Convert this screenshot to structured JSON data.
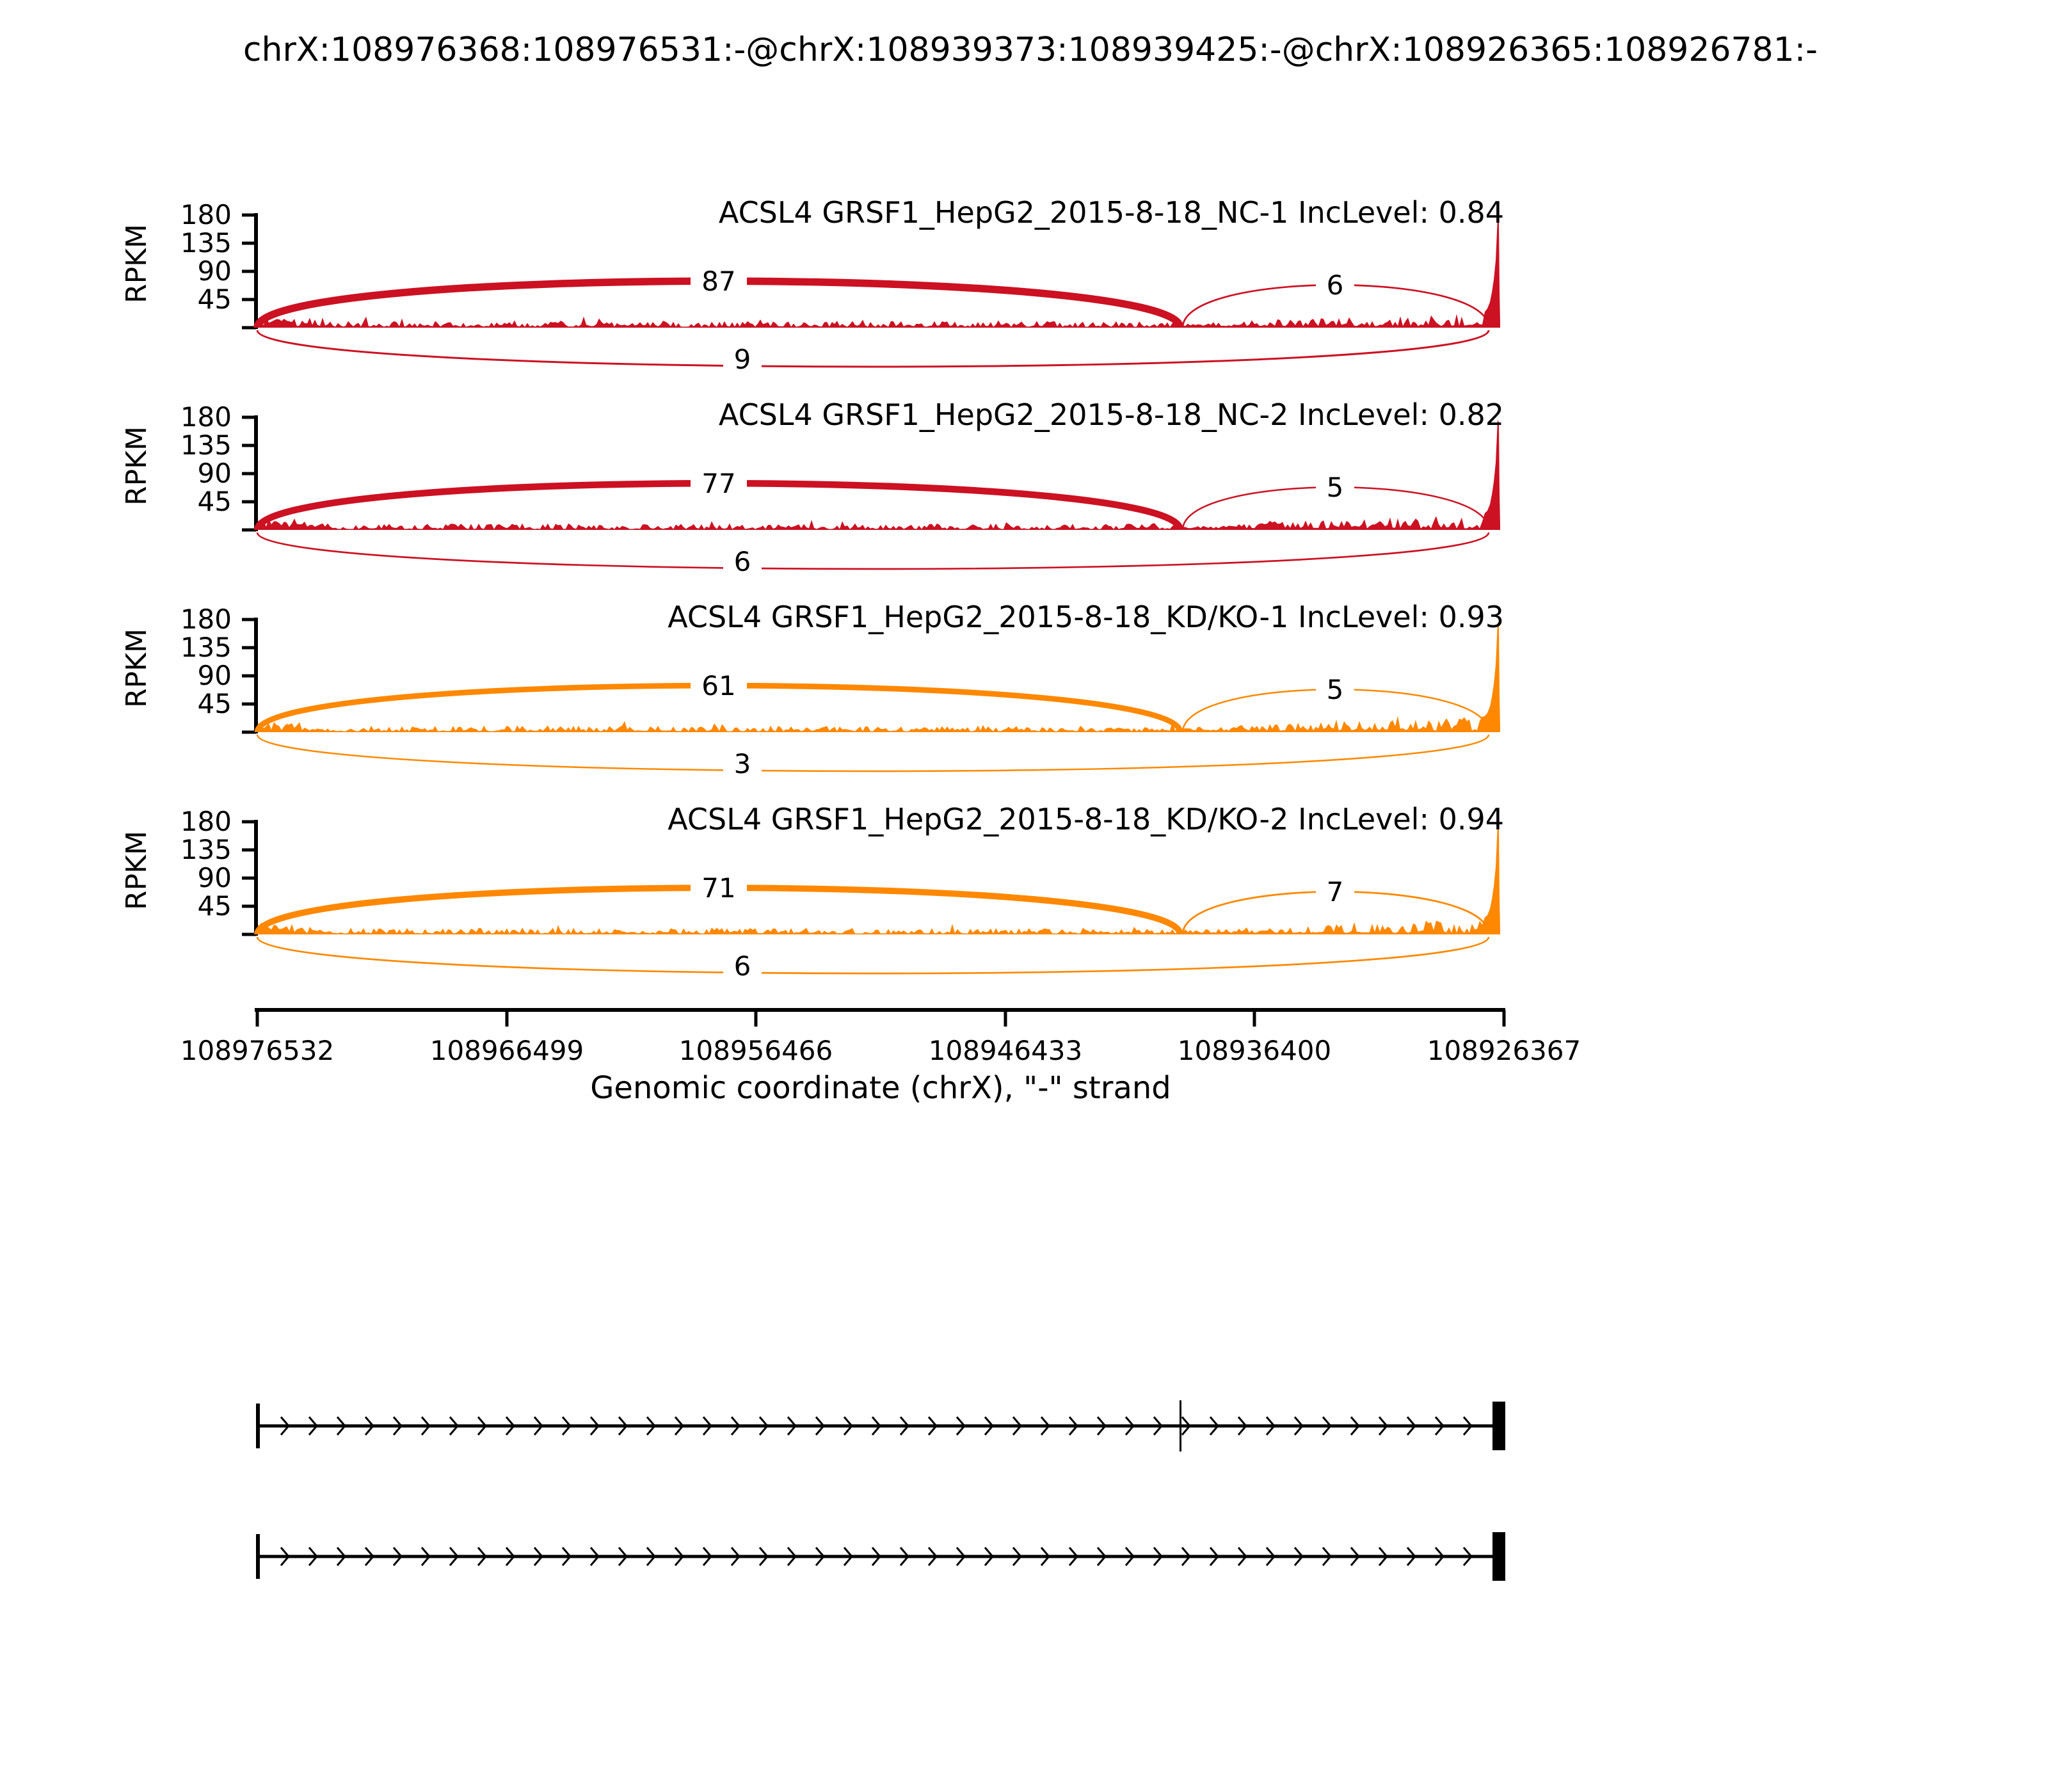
{
  "title": "chrX:108976368:108976531:-@chrX:108939373:108939425:-@chrX:108926365:108926781:-",
  "colors": {
    "group1_red": "#CC1122",
    "group2_orange": "#FF8800",
    "axis_black": "#000000"
  },
  "chart_data": {
    "type": "sashimi",
    "gene": "ACSL4",
    "event_exons": [
      "chrX:108976368:108976531:-",
      "chrX:108939373:108939425:-",
      "chrX:108926365:108926781:-"
    ],
    "ylabel": "RPKM",
    "yticks": [
      45,
      90,
      135,
      180
    ],
    "ylim": [
      0,
      180
    ],
    "xlabel": "Genomic coordinate (chrX), \"-\" strand",
    "xticks": [
      "108976532",
      "108966499",
      "108956466",
      "108946433",
      "108936400",
      "108926367"
    ],
    "strand": "-",
    "legend_position": "none",
    "grid": false,
    "tracks": [
      {
        "label": "ACSL4 GRSF1_HepG2_2015-8-18_NC-1 IncLevel: 0.84",
        "sample": "GRSF1_HepG2_2015-8-18_NC-1",
        "inc_level": 0.84,
        "color": "#CC1122",
        "junctions": [
          {
            "count": 87,
            "span": "upstream-exon-to-skipped-exon"
          },
          {
            "count": 6,
            "span": "skipped-exon-to-downstream-exon"
          },
          {
            "count": 9,
            "span": "upstream-to-downstream-skipping"
          }
        ]
      },
      {
        "label": "ACSL4 GRSF1_HepG2_2015-8-18_NC-2 IncLevel: 0.82",
        "sample": "GRSF1_HepG2_2015-8-18_NC-2",
        "inc_level": 0.82,
        "color": "#CC1122",
        "junctions": [
          {
            "count": 77,
            "span": "upstream-exon-to-skipped-exon"
          },
          {
            "count": 5,
            "span": "skipped-exon-to-downstream-exon"
          },
          {
            "count": 6,
            "span": "upstream-to-downstream-skipping"
          }
        ]
      },
      {
        "label": "ACSL4 GRSF1_HepG2_2015-8-18_KD/KO-1 IncLevel: 0.93",
        "sample": "GRSF1_HepG2_2015-8-18_KD/KO-1",
        "inc_level": 0.93,
        "color": "#FF8800",
        "junctions": [
          {
            "count": 61,
            "span": "upstream-exon-to-skipped-exon"
          },
          {
            "count": 5,
            "span": "skipped-exon-to-downstream-exon"
          },
          {
            "count": 3,
            "span": "upstream-to-downstream-skipping"
          }
        ]
      },
      {
        "label": "ACSL4 GRSF1_HepG2_2015-8-18_KD/KO-2 IncLevel: 0.94",
        "sample": "GRSF1_HepG2_2015-8-18_KD/KO-2",
        "inc_level": 0.94,
        "color": "#FF8800",
        "junctions": [
          {
            "count": 71,
            "span": "upstream-exon-to-skipped-exon"
          },
          {
            "count": 7,
            "span": "skipped-exon-to-downstream-exon"
          },
          {
            "count": 6,
            "span": "upstream-to-downstream-skipping"
          }
        ]
      }
    ],
    "gene_structure": {
      "arrow_direction": "right",
      "isoforms": [
        {
          "name": "inclusion-isoform",
          "exon_marks": [
            "start-bar",
            "middle-thin-exon",
            "end-exon-block"
          ]
        },
        {
          "name": "skipping-isoform",
          "exon_marks": [
            "start-bar",
            "end-exon-block"
          ]
        }
      ]
    }
  }
}
